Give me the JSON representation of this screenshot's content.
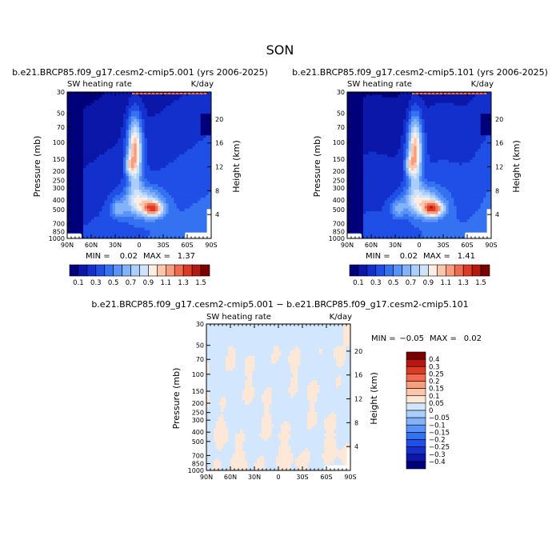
{
  "page": {
    "title": "SON"
  },
  "palettes": {
    "abs": [
      "#00007a",
      "#0a17a8",
      "#1330cc",
      "#1f4fe6",
      "#3472f2",
      "#5a93f7",
      "#84b2fa",
      "#aacffc",
      "#cfe3fd",
      "#fdeee3",
      "#fbc6ac",
      "#f79c7d",
      "#ef6a4e",
      "#dd3a26",
      "#b5180e",
      "#7a0000"
    ],
    "diff": [
      "#00007a",
      "#0a17a8",
      "#1330cc",
      "#1f4fe6",
      "#3472f2",
      "#5a93f7",
      "#84b2fa",
      "#aacffc",
      "#d2e6fd",
      "#fde7d6",
      "#fbc6ac",
      "#f79c7d",
      "#ef6a4e",
      "#dd3a26",
      "#b5180e",
      "#7a0000"
    ]
  },
  "chart_data": [
    {
      "type": "heatmap",
      "title": "b.e21.BRCP85.f09_g17.cesm2-cmip5.001 (yrs 2006-2025)",
      "left_label": "SW heating rate",
      "right_label": "K/day",
      "ylabel": "Pressure (mb)",
      "y2label": "Height (km)",
      "x_ticks": [
        "90N",
        "60N",
        "30N",
        "0",
        "30S",
        "60S",
        "90S"
      ],
      "y_ticks": [
        "30",
        "50",
        "70",
        "100",
        "150",
        "200",
        "250",
        "300",
        "400",
        "500",
        "700",
        "850",
        "1000"
      ],
      "y2_ticks": [
        "20",
        "16",
        "12",
        "8",
        "4"
      ],
      "stats": {
        "min_label": "MIN =",
        "min": "0.02",
        "max_label": "MAX =",
        "max": "1.37"
      },
      "colorbar": {
        "orientation": "horizontal",
        "labels": [
          "0.1",
          "0.3",
          "0.5",
          "0.7",
          "0.9",
          "1.1",
          "1.3",
          "1.5"
        ]
      }
    },
    {
      "type": "heatmap",
      "title": "b.e21.BRCP85.f09_g17.cesm2-cmip5.101 (yrs 2006-2025)",
      "left_label": "SW heating rate",
      "right_label": "K/day",
      "ylabel": "Pressure (mb)",
      "y2label": "Height (km)",
      "x_ticks": [
        "90N",
        "60N",
        "30N",
        "0",
        "30S",
        "60S",
        "90S"
      ],
      "y_ticks": [
        "30",
        "50",
        "70",
        "100",
        "150",
        "200",
        "250",
        "300",
        "400",
        "500",
        "700",
        "850",
        "1000"
      ],
      "y2_ticks": [
        "20",
        "16",
        "12",
        "8",
        "4"
      ],
      "stats": {
        "min_label": "MIN =",
        "min": "0.02",
        "max_label": "MAX =",
        "max": "1.41"
      },
      "colorbar": {
        "orientation": "horizontal",
        "labels": [
          "0.1",
          "0.3",
          "0.5",
          "0.7",
          "0.9",
          "1.1",
          "1.3",
          "1.5"
        ]
      }
    },
    {
      "type": "heatmap",
      "title": "b.e21.BRCP85.f09_g17.cesm2-cmip5.001 − b.e21.BRCP85.f09_g17.cesm2-cmip5.101",
      "left_label": "SW heating rate",
      "right_label": "K/day",
      "ylabel": "Pressure (mb)",
      "y2label": "Height (km)",
      "x_ticks": [
        "90N",
        "60N",
        "30N",
        "0",
        "30S",
        "60S",
        "90S"
      ],
      "y_ticks": [
        "30",
        "50",
        "70",
        "100",
        "150",
        "200",
        "250",
        "300",
        "400",
        "500",
        "700",
        "850",
        "1000"
      ],
      "y2_ticks": [
        "20",
        "16",
        "12",
        "8",
        "4"
      ],
      "stats": {
        "min_label": "MIN =",
        "min": "−0.05",
        "max_label": "MAX =",
        "max": "0.02"
      },
      "colorbar": {
        "orientation": "vertical",
        "labels": [
          "0.4",
          "0.3",
          "0.25",
          "0.2",
          "0.15",
          "0.1",
          "0.05",
          "0",
          "−0.05",
          "−0.1",
          "−0.15",
          "−0.2",
          "−0.25",
          "−0.3",
          "−0.4"
        ]
      }
    }
  ]
}
